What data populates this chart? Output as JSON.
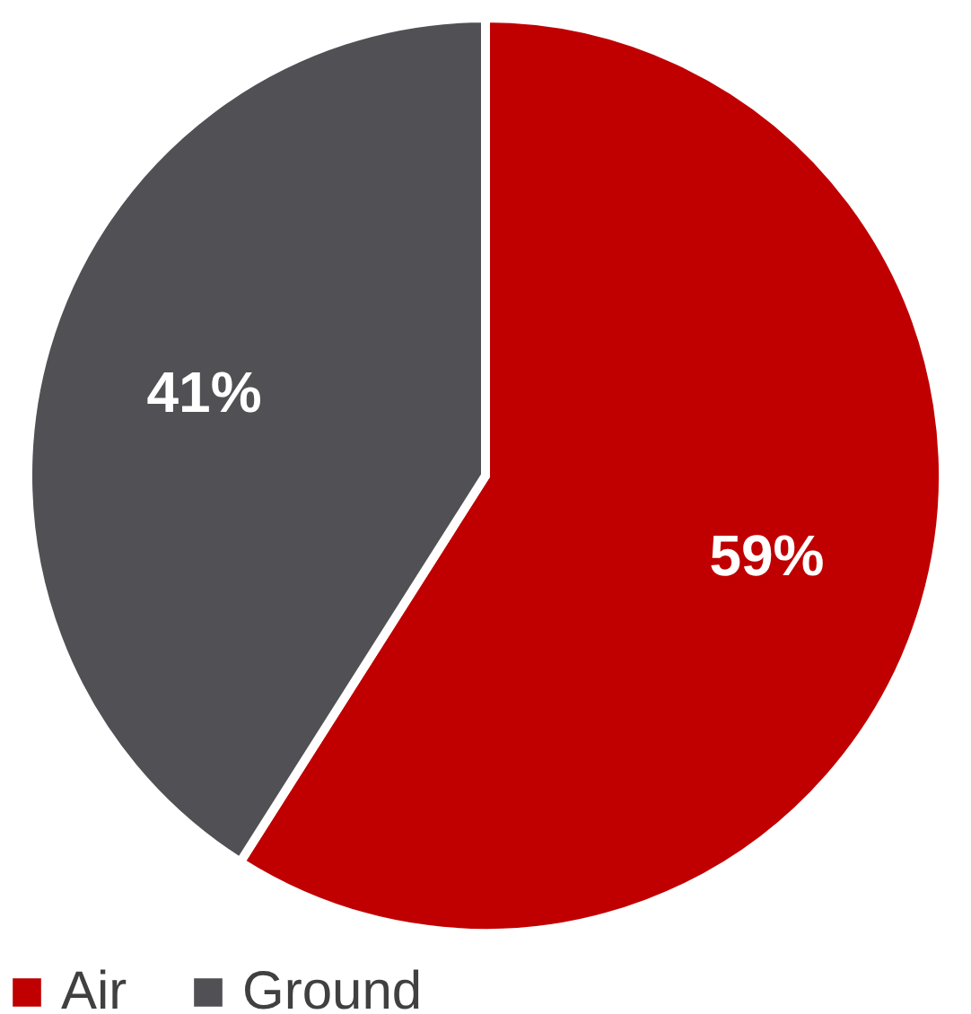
{
  "chart_data": {
    "type": "pie",
    "categories": [
      "Air",
      "Ground"
    ],
    "values": [
      59,
      41
    ],
    "colors": [
      "#c00000",
      "#505055"
    ],
    "value_labels": [
      "59%",
      "41%"
    ],
    "legend": "bottom"
  }
}
